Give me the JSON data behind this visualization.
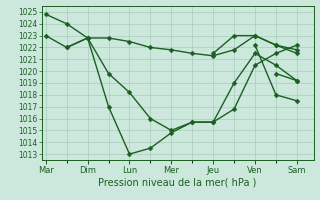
{
  "xlabel": "Pression niveau de la mer( hPa )",
  "xlabel_fontsize": 7,
  "background_color": "#cce8dd",
  "grid_color": "#aaccbb",
  "line_color": "#1a6020",
  "ylim": [
    1012.5,
    1025.5
  ],
  "yticks": [
    1013,
    1014,
    1015,
    1016,
    1017,
    1018,
    1019,
    1020,
    1021,
    1022,
    1023,
    1024,
    1025
  ],
  "day_labels": [
    "Mar",
    "Dim",
    "Lun",
    "Mer",
    "Jeu",
    "Ven",
    "Sam"
  ],
  "day_positions": [
    0,
    2,
    4,
    6,
    8,
    10,
    12
  ],
  "xlim": [
    -0.2,
    12.8
  ],
  "series": [
    {
      "x": [
        0,
        1,
        2,
        3,
        4,
        5,
        6,
        7,
        8,
        9,
        10,
        11,
        12
      ],
      "y": [
        1024.8,
        1024.0,
        1022.8,
        1019.8,
        1018.2,
        1016.0,
        1015.0,
        1015.7,
        1015.7,
        1019.0,
        1021.5,
        1020.5,
        1019.2
      ]
    },
    {
      "x": [
        0,
        1,
        2,
        3,
        4,
        5,
        6,
        7,
        8,
        9,
        10,
        11,
        12
      ],
      "y": [
        1023.0,
        1022.0,
        1022.8,
        1022.8,
        1022.5,
        1022.0,
        1021.8,
        1021.5,
        1021.3,
        1021.8,
        1023.0,
        1022.2,
        1021.5
      ]
    },
    {
      "x": [
        1,
        2,
        3,
        4,
        5,
        6,
        7,
        8,
        9,
        10,
        11,
        12
      ],
      "y": [
        1022.0,
        1022.8,
        1017.0,
        1013.0,
        1013.5,
        1014.8,
        1015.7,
        1015.7,
        1016.8,
        1020.5,
        1021.5,
        1022.2
      ]
    },
    {
      "x": [
        8,
        9,
        10,
        11,
        12
      ],
      "y": [
        1021.5,
        1023.0,
        1023.0,
        1022.2,
        1021.8
      ]
    },
    {
      "x": [
        10,
        11,
        12
      ],
      "y": [
        1022.2,
        1018.0,
        1017.5
      ]
    },
    {
      "x": [
        11,
        12
      ],
      "y": [
        1019.8,
        1019.2
      ]
    }
  ],
  "marker_size": 2.5,
  "line_width": 1.0
}
